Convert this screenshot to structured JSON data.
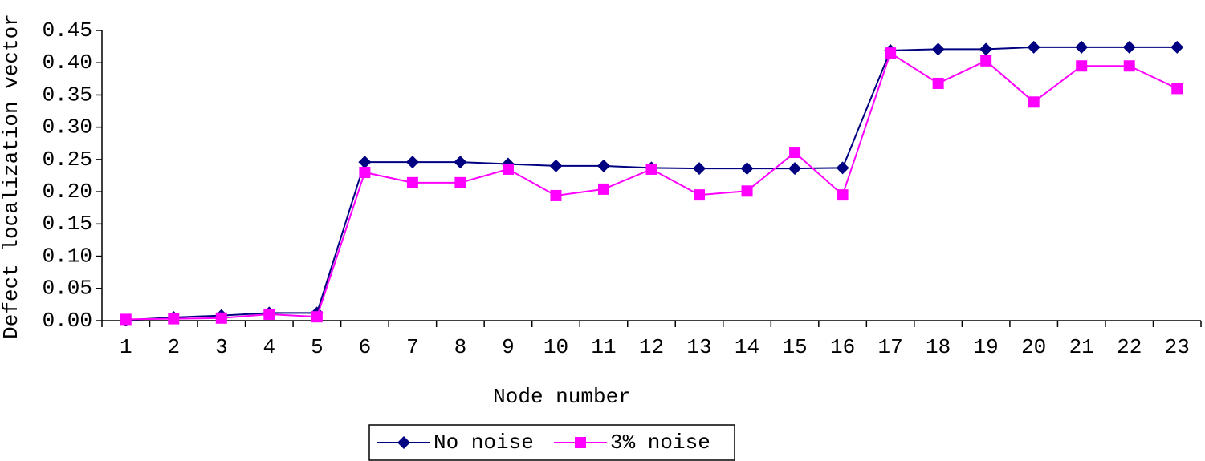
{
  "chart_data": {
    "type": "line",
    "x_label": "Node number",
    "y_label": "Defect localization vector",
    "categories": [
      "1",
      "2",
      "3",
      "4",
      "5",
      "6",
      "7",
      "8",
      "9",
      "10",
      "11",
      "12",
      "13",
      "14",
      "15",
      "16",
      "17",
      "18",
      "19",
      "20",
      "21",
      "22",
      "23"
    ],
    "series": [
      {
        "name": "No noise",
        "color": "#000080",
        "marker": "diamond",
        "values": [
          0.001,
          0.005,
          0.008,
          0.012,
          0.012,
          0.246,
          0.246,
          0.246,
          0.243,
          0.24,
          0.24,
          0.237,
          0.236,
          0.236,
          0.236,
          0.237,
          0.419,
          0.421,
          0.421,
          0.424,
          0.424,
          0.424,
          0.424
        ]
      },
      {
        "name": "3% noise",
        "color": "#ff00ff",
        "marker": "square",
        "values": [
          0.002,
          0.003,
          0.004,
          0.01,
          0.006,
          0.23,
          0.214,
          0.214,
          0.235,
          0.194,
          0.204,
          0.235,
          0.195,
          0.201,
          0.261,
          0.195,
          0.415,
          0.368,
          0.403,
          0.339,
          0.395,
          0.395,
          0.36
        ]
      }
    ],
    "ylim": [
      0,
      0.45
    ],
    "yticks": [
      {
        "value": 0,
        "label": "0.00"
      },
      0.05,
      {
        "value": 0.1,
        "label": "0.10"
      },
      0.15,
      {
        "value": 0.2,
        "label": "0.20"
      },
      0.25,
      {
        "value": 0.3,
        "label": "0.30"
      },
      0.35,
      {
        "value": 0.4,
        "label": "0.40"
      },
      0.45
    ],
    "grid": false,
    "legend": "bottom"
  }
}
